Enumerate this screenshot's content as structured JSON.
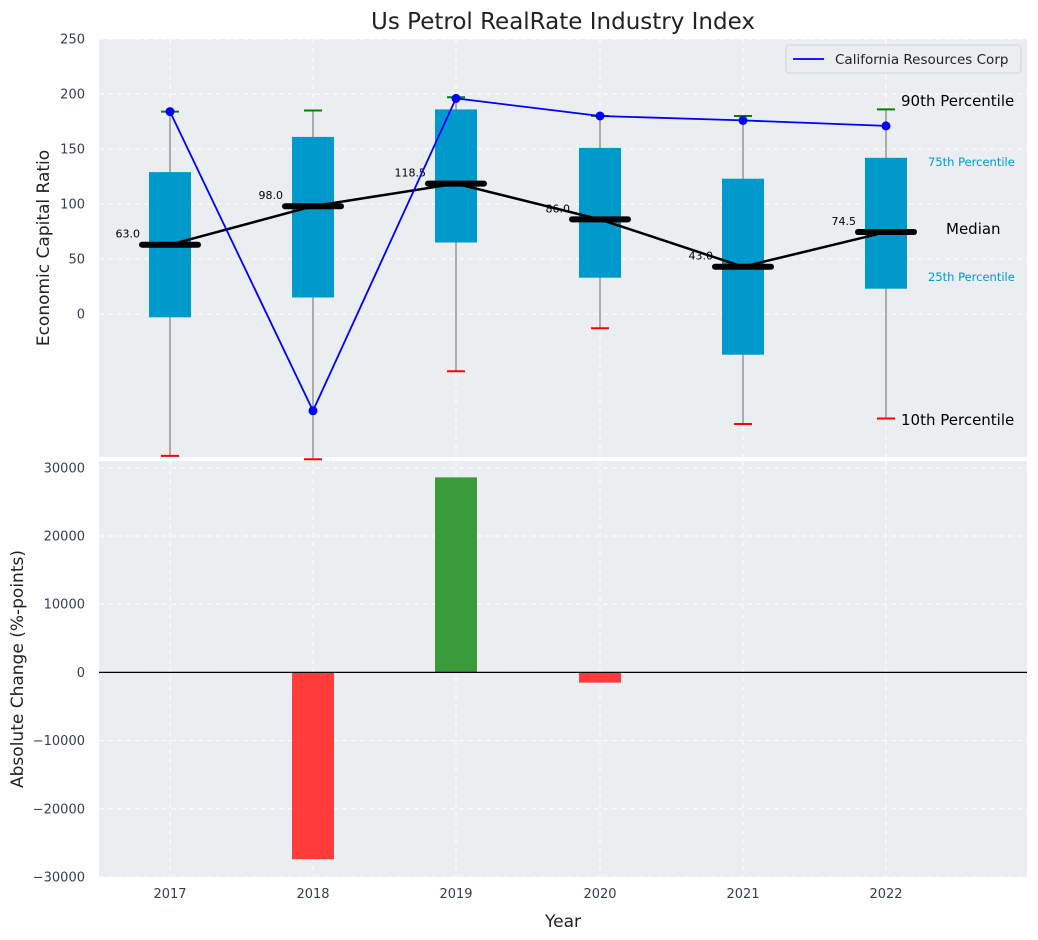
{
  "title": "Us Petrol RealRate Industry Index",
  "chart_data": [
    {
      "type": "box",
      "ylabel": "Economic Capital Ratio",
      "ylim": [
        -130,
        250
      ],
      "yticks": [
        "0",
        "50",
        "100",
        "150",
        "200",
        "250"
      ],
      "ytick_values": [
        0,
        50,
        100,
        150,
        200,
        250
      ],
      "categories": [
        "2017",
        "2018",
        "2019",
        "2020",
        "2021",
        "2022"
      ],
      "grid": true,
      "p10": [
        -129,
        -132,
        -52,
        -13,
        -100,
        -95
      ],
      "p25": [
        -3,
        15,
        65,
        33,
        -37,
        23
      ],
      "median": [
        63.0,
        98.0,
        118.5,
        86.0,
        43.0,
        74.5
      ],
      "median_labels": [
        "63.0",
        "98.0",
        "118.5",
        "86.0",
        "43.0",
        "74.5"
      ],
      "p75": [
        129,
        161,
        186,
        151,
        123,
        142
      ],
      "p90": [
        184,
        185,
        197,
        180,
        180,
        186
      ],
      "series": [
        {
          "name": "California Resources Corp",
          "color": "#0000ff",
          "values": [
            184,
            -88,
            196,
            180,
            176,
            171
          ]
        }
      ],
      "legend_position": "top-right",
      "annotations": {
        "p90": "90th Percentile",
        "p75": "75th Percentile",
        "median": "Median",
        "p25": "25th Percentile",
        "p10": "10th Percentile"
      },
      "colors": {
        "box": "#0099cc",
        "median": "#000000",
        "p90_cap": "#008000",
        "p10_cap": "#ff0000",
        "whisker": "#808080",
        "background": "#eaeef0",
        "percentile_label": "#0099cc"
      }
    },
    {
      "type": "bar",
      "xlabel": "Year",
      "ylabel": "Absolute Change (%-points)",
      "ylim": [
        -30000,
        31000
      ],
      "yticks": [
        "30000",
        "20000",
        "10000",
        "0",
        "−10000",
        "−20000",
        "−30000"
      ],
      "ytick_values": [
        30000,
        20000,
        10000,
        0,
        -10000,
        -20000,
        -30000
      ],
      "categories": [
        "2017",
        "2018",
        "2019",
        "2020",
        "2021",
        "2022"
      ],
      "values": [
        0,
        -27400,
        28600,
        -1500,
        0,
        0
      ],
      "grid": true,
      "colors": {
        "positive": "#3a9b3a",
        "negative": "#ff3c3c",
        "zero_line": "#000000"
      }
    }
  ]
}
